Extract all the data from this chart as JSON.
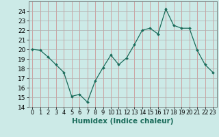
{
  "x": [
    0,
    1,
    2,
    3,
    4,
    5,
    6,
    7,
    8,
    9,
    10,
    11,
    12,
    13,
    14,
    15,
    16,
    17,
    18,
    19,
    20,
    21,
    22,
    23
  ],
  "y": [
    20.0,
    19.9,
    19.2,
    18.4,
    17.6,
    15.1,
    15.3,
    14.5,
    16.7,
    18.1,
    19.4,
    18.4,
    19.1,
    20.5,
    22.0,
    22.2,
    21.6,
    24.2,
    22.5,
    22.2,
    22.2,
    19.9,
    18.4,
    17.6
  ],
  "line_color": "#1a6b5a",
  "marker": "D",
  "marker_size": 2.0,
  "bg_color": "#cceae7",
  "grid_color_h": "#b0b0b0",
  "grid_color_v": "#cc8888",
  "xlabel": "Humidex (Indice chaleur)",
  "ylim": [
    14,
    25
  ],
  "xlim": [
    -0.5,
    23.5
  ],
  "yticks": [
    14,
    15,
    16,
    17,
    18,
    19,
    20,
    21,
    22,
    23,
    24
  ],
  "xticks": [
    0,
    1,
    2,
    3,
    4,
    5,
    6,
    7,
    8,
    9,
    10,
    11,
    12,
    13,
    14,
    15,
    16,
    17,
    18,
    19,
    20,
    21,
    22,
    23
  ],
  "tick_font_size": 6.5,
  "xlabel_font_size": 7.5
}
